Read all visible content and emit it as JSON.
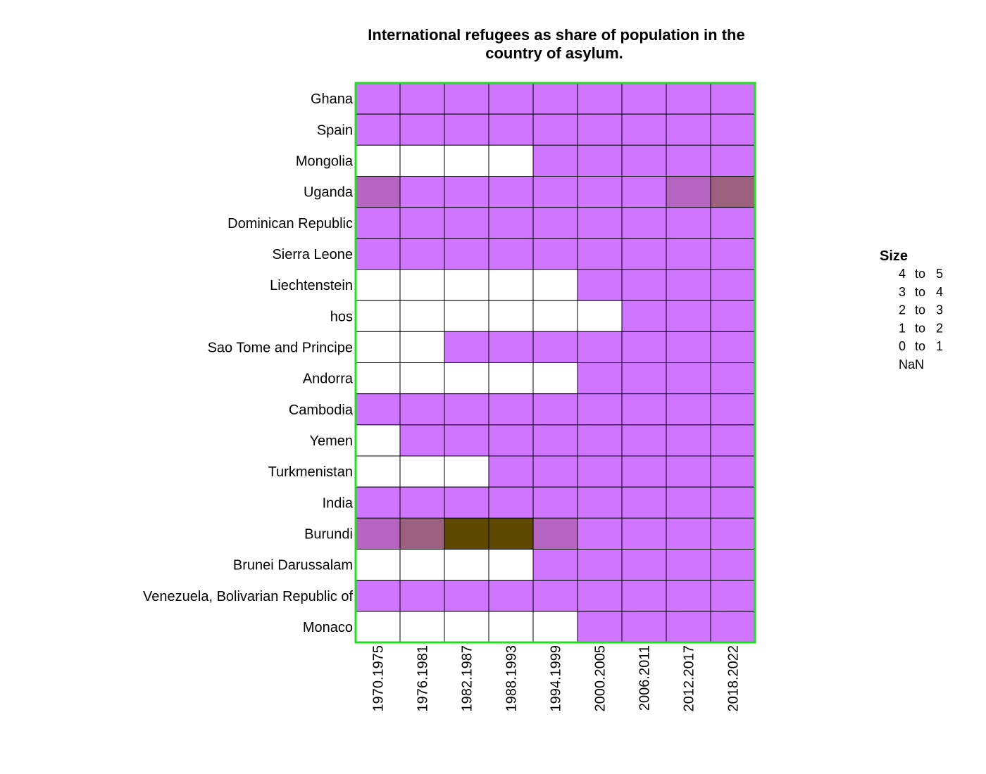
{
  "chart_data": {
    "type": "heatmap",
    "title": "International refugees as share of population in the country of asylum.",
    "title_lines": [
      "International refugees as share of population in the",
      "country of asylum."
    ],
    "columns": [
      "1970.1975",
      "1976.1981",
      "1982.1987",
      "1988.1993",
      "1994.1999",
      "2000.2005",
      "2006.2011",
      "2012.2017",
      "2018.2022"
    ],
    "rows": [
      "Ghana",
      "Spain",
      "Mongolia",
      "Uganda",
      "Dominican Republic",
      "Sierra Leone",
      "Liechtenstein",
      "hos",
      "Sao Tome and Principe",
      "Andorra",
      "Cambodia",
      "Yemen",
      "Turkmenistan",
      "India",
      "Burundi",
      "Brunei Darussalam",
      "Venezuela, Bolivarian Republic of",
      "Monaco"
    ],
    "bins": [
      "NaN",
      "0 to 1",
      "1 to 2",
      "2 to 3",
      "3 to 4",
      "4 to 5"
    ],
    "bin_colors": {
      "NaN": "#ffffff",
      "0 to 1": "#cf75ff",
      "1 to 2": "#b565c0",
      "2 to 3": "#9a607e",
      "3 to 4": "#7a5440",
      "4 to 5": "#5e4800"
    },
    "values": [
      [
        "0 to 1",
        "0 to 1",
        "0 to 1",
        "0 to 1",
        "0 to 1",
        "0 to 1",
        "0 to 1",
        "0 to 1",
        "0 to 1"
      ],
      [
        "0 to 1",
        "0 to 1",
        "0 to 1",
        "0 to 1",
        "0 to 1",
        "0 to 1",
        "0 to 1",
        "0 to 1",
        "0 to 1"
      ],
      [
        "NaN",
        "NaN",
        "NaN",
        "NaN",
        "0 to 1",
        "0 to 1",
        "0 to 1",
        "0 to 1",
        "0 to 1"
      ],
      [
        "1 to 2",
        "0 to 1",
        "0 to 1",
        "0 to 1",
        "0 to 1",
        "0 to 1",
        "0 to 1",
        "1 to 2",
        "2 to 3"
      ],
      [
        "0 to 1",
        "0 to 1",
        "0 to 1",
        "0 to 1",
        "0 to 1",
        "0 to 1",
        "0 to 1",
        "0 to 1",
        "0 to 1"
      ],
      [
        "0 to 1",
        "0 to 1",
        "0 to 1",
        "0 to 1",
        "0 to 1",
        "0 to 1",
        "0 to 1",
        "0 to 1",
        "0 to 1"
      ],
      [
        "NaN",
        "NaN",
        "NaN",
        "NaN",
        "NaN",
        "0 to 1",
        "0 to 1",
        "0 to 1",
        "0 to 1"
      ],
      [
        "NaN",
        "NaN",
        "NaN",
        "NaN",
        "NaN",
        "NaN",
        "0 to 1",
        "0 to 1",
        "0 to 1"
      ],
      [
        "NaN",
        "NaN",
        "0 to 1",
        "0 to 1",
        "0 to 1",
        "0 to 1",
        "0 to 1",
        "0 to 1",
        "0 to 1"
      ],
      [
        "NaN",
        "NaN",
        "NaN",
        "NaN",
        "NaN",
        "0 to 1",
        "0 to 1",
        "0 to 1",
        "0 to 1"
      ],
      [
        "0 to 1",
        "0 to 1",
        "0 to 1",
        "0 to 1",
        "0 to 1",
        "0 to 1",
        "0 to 1",
        "0 to 1",
        "0 to 1"
      ],
      [
        "NaN",
        "0 to 1",
        "0 to 1",
        "0 to 1",
        "0 to 1",
        "0 to 1",
        "0 to 1",
        "0 to 1",
        "0 to 1"
      ],
      [
        "NaN",
        "NaN",
        "NaN",
        "0 to 1",
        "0 to 1",
        "0 to 1",
        "0 to 1",
        "0 to 1",
        "0 to 1"
      ],
      [
        "0 to 1",
        "0 to 1",
        "0 to 1",
        "0 to 1",
        "0 to 1",
        "0 to 1",
        "0 to 1",
        "0 to 1",
        "0 to 1"
      ],
      [
        "1 to 2",
        "2 to 3",
        "4 to 5",
        "4 to 5",
        "1 to 2",
        "0 to 1",
        "0 to 1",
        "0 to 1",
        "0 to 1"
      ],
      [
        "NaN",
        "NaN",
        "NaN",
        "NaN",
        "0 to 1",
        "0 to 1",
        "0 to 1",
        "0 to 1",
        "0 to 1"
      ],
      [
        "0 to 1",
        "0 to 1",
        "0 to 1",
        "0 to 1",
        "0 to 1",
        "0 to 1",
        "0 to 1",
        "0 to 1",
        "0 to 1"
      ],
      [
        "NaN",
        "NaN",
        "NaN",
        "NaN",
        "NaN",
        "0 to 1",
        "0 to 1",
        "0 to 1",
        "0 to 1"
      ]
    ],
    "legend": {
      "title": "Size",
      "entries": [
        {
          "from": "4",
          "to": "5"
        },
        {
          "from": "3",
          "to": "4"
        },
        {
          "from": "2",
          "to": "3"
        },
        {
          "from": "1",
          "to": "2"
        },
        {
          "from": "0",
          "to": "1"
        },
        {
          "label": "NaN"
        }
      ],
      "to_word": "to",
      "position": "right"
    },
    "frame_color": "#22dd22",
    "grid_color": "#000000"
  }
}
